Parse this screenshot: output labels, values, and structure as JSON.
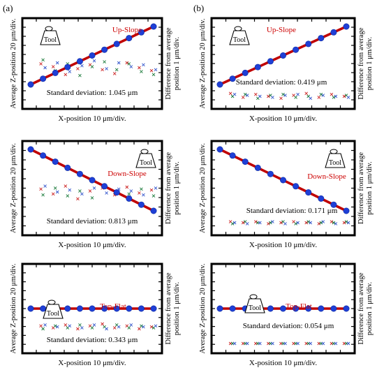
{
  "figure": {
    "col_labels": [
      "(a)",
      "(b)"
    ]
  },
  "chart_data": [
    {
      "id": "a-up",
      "type": "scatter",
      "title": "Up-Slope",
      "tool_label": "Tool",
      "xlabel": "X-position 10 μm/div.",
      "ylabel": "Average Z-position 20 μm/div.",
      "y2label": [
        "Difference from average",
        "position 1 μm/div."
      ],
      "annotation": "Standard deviation: 1.045 μm",
      "series": [
        {
          "role": "average",
          "x": [
            0,
            1,
            2,
            3,
            4,
            5,
            6,
            7,
            8,
            9,
            10
          ],
          "y": [
            0,
            1,
            2,
            3,
            4,
            5,
            6,
            7,
            8,
            9,
            10
          ]
        },
        {
          "role": "difference",
          "color": "#cc2222",
          "x": [
            1,
            2,
            3,
            4,
            5,
            6,
            7,
            8,
            9,
            10
          ],
          "y": [
            0.9,
            0.6,
            -0.2,
            0.4,
            0.8,
            0.3,
            -0.1,
            1.0,
            0.5,
            0.2
          ]
        },
        {
          "role": "difference",
          "color": "#1a7a3a",
          "x": [
            1,
            2,
            3,
            4,
            5,
            6,
            7,
            8,
            9,
            10
          ],
          "y": [
            1.3,
            0.2,
            0.9,
            -0.3,
            0.6,
            1.1,
            0.3,
            0.9,
            0.1,
            -0.2
          ]
        },
        {
          "role": "difference",
          "color": "#3355cc",
          "x": [
            1,
            2,
            3,
            4,
            5,
            6,
            7,
            8,
            9,
            10
          ],
          "y": [
            0.5,
            1.0,
            0.1,
            0.7,
            1.2,
            0.4,
            1.0,
            0.6,
            0.8,
            0.3
          ]
        }
      ]
    },
    {
      "id": "b-up",
      "type": "scatter",
      "title": "Up-Slope",
      "tool_label": "Tool",
      "xlabel": "X-position 10 μm/div.",
      "ylabel": "Average Z-position 20 μm/div.",
      "y2label": [
        "Difference from average",
        "position 1 μm/div."
      ],
      "annotation": "Standard deviation: 0.419 μm",
      "series": [
        {
          "role": "average",
          "x": [
            0,
            1,
            2,
            3,
            4,
            5,
            6,
            7,
            8,
            9,
            10
          ],
          "y": [
            0,
            1,
            2,
            3,
            4,
            5,
            6,
            7,
            8,
            9,
            10
          ]
        },
        {
          "role": "difference",
          "color": "#cc2222",
          "x": [
            1,
            2,
            3,
            4,
            5,
            6,
            7,
            8,
            9,
            10
          ],
          "y": [
            0.3,
            -0.1,
            0.2,
            0.0,
            -0.2,
            0.1,
            0.3,
            -0.1,
            0.2,
            0.0
          ]
        },
        {
          "role": "difference",
          "color": "#1a7a3a",
          "x": [
            1,
            2,
            3,
            4,
            5,
            6,
            7,
            8,
            9,
            10
          ],
          "y": [
            0.0,
            0.2,
            -0.2,
            0.1,
            0.2,
            -0.1,
            0.0,
            0.2,
            -0.1,
            0.1
          ]
        },
        {
          "role": "difference",
          "color": "#3355cc",
          "x": [
            1,
            2,
            3,
            4,
            5,
            6,
            7,
            8,
            9,
            10
          ],
          "y": [
            0.2,
            0.1,
            0.0,
            -0.1,
            0.1,
            0.2,
            -0.2,
            0.1,
            0.0,
            -0.1
          ]
        }
      ]
    },
    {
      "id": "a-down",
      "type": "scatter",
      "title": "Down-Slope",
      "tool_label": "Tool",
      "xlabel": "X-position 10 μm/div.",
      "ylabel": "Average Z-position 20 μm/div.",
      "y2label": [
        "Difference from average",
        "position 1 μm/div."
      ],
      "annotation": "Standard deviation: 0.813 μm",
      "series": [
        {
          "role": "average",
          "x": [
            0,
            1,
            2,
            3,
            4,
            5,
            6,
            7,
            8,
            9,
            10
          ],
          "y": [
            10,
            9,
            8,
            7,
            6,
            5,
            4,
            3,
            2,
            1,
            0
          ]
        },
        {
          "role": "difference",
          "color": "#cc2222",
          "x": [
            1,
            2,
            3,
            4,
            5,
            6,
            7,
            8,
            9,
            10
          ],
          "y": [
            0.8,
            0.3,
            1.1,
            -0.2,
            0.6,
            0.9,
            0.2,
            1.0,
            0.4,
            0.7
          ]
        },
        {
          "role": "difference",
          "color": "#1a7a3a",
          "x": [
            1,
            2,
            3,
            4,
            5,
            6,
            7,
            8,
            9,
            10
          ],
          "y": [
            0.2,
            0.9,
            0.1,
            0.6,
            -0.1,
            1.0,
            0.5,
            0.3,
            0.8,
            0.1
          ]
        },
        {
          "role": "difference",
          "color": "#3355cc",
          "x": [
            1,
            2,
            3,
            4,
            5,
            6,
            7,
            8,
            9,
            10
          ],
          "y": [
            1.1,
            0.5,
            0.7,
            0.3,
            0.9,
            0.4,
            0.8,
            0.6,
            0.2,
            0.9
          ]
        }
      ]
    },
    {
      "id": "b-down",
      "type": "scatter",
      "title": "Down-Slope",
      "tool_label": "Tool",
      "xlabel": "X-position 10 μm/div.",
      "ylabel": "Average Z-position 20 μm/div.",
      "y2label": [
        "Difference from average",
        "position 1 μm/div."
      ],
      "annotation": "Standard deviation: 0.171 μm",
      "series": [
        {
          "role": "average",
          "x": [
            0,
            1,
            2,
            3,
            4,
            5,
            6,
            7,
            8,
            9,
            10
          ],
          "y": [
            10,
            9,
            8,
            7,
            6,
            5,
            4,
            3,
            2,
            1,
            0
          ]
        },
        {
          "role": "difference",
          "color": "#cc2222",
          "x": [
            1,
            2,
            3,
            4,
            5,
            6,
            7,
            8,
            9,
            10
          ],
          "y": [
            0.1,
            0.0,
            0.1,
            -0.1,
            0.0,
            0.1,
            0.0,
            -0.1,
            0.1,
            0.0
          ]
        },
        {
          "role": "difference",
          "color": "#1a7a3a",
          "x": [
            1,
            2,
            3,
            4,
            5,
            6,
            7,
            8,
            9,
            10
          ],
          "y": [
            -0.1,
            0.1,
            0.0,
            0.0,
            0.1,
            -0.1,
            0.1,
            0.0,
            0.0,
            0.1
          ]
        },
        {
          "role": "difference",
          "color": "#3355cc",
          "x": [
            1,
            2,
            3,
            4,
            5,
            6,
            7,
            8,
            9,
            10
          ],
          "y": [
            0.0,
            -0.1,
            0.0,
            0.1,
            -0.1,
            0.0,
            0.0,
            0.1,
            -0.1,
            0.0
          ]
        }
      ]
    },
    {
      "id": "a-flat",
      "type": "scatter",
      "title": "Top-Flat",
      "tool_label": "Tool",
      "xlabel": "X-position 10 μm/div.",
      "ylabel": "Average Z-position 20 μm/div.",
      "y2label": [
        "Difference from average",
        "position 1 μm/div."
      ],
      "annotation": "Standard deviation: 0.343 μm",
      "series": [
        {
          "role": "average",
          "x": [
            0,
            1,
            2,
            3,
            4,
            5,
            6,
            7,
            8,
            9,
            10
          ],
          "y": [
            5,
            5,
            5,
            5,
            5,
            5,
            5,
            5,
            5,
            5,
            5
          ]
        },
        {
          "role": "difference",
          "color": "#cc2222",
          "x": [
            1,
            2,
            3,
            4,
            5,
            6,
            7,
            8,
            9,
            10
          ],
          "y": [
            0.3,
            0.1,
            0.4,
            0.0,
            0.3,
            0.5,
            0.1,
            0.3,
            0.0,
            0.2
          ]
        },
        {
          "role": "difference",
          "color": "#1a7a3a",
          "x": [
            1,
            2,
            3,
            4,
            5,
            6,
            7,
            8,
            9,
            10
          ],
          "y": [
            0.0,
            0.3,
            0.1,
            0.4,
            0.1,
            0.2,
            0.4,
            0.1,
            0.3,
            0.1
          ]
        },
        {
          "role": "difference",
          "color": "#3355cc",
          "x": [
            1,
            2,
            3,
            4,
            5,
            6,
            7,
            8,
            9,
            10
          ],
          "y": [
            0.4,
            0.2,
            0.3,
            0.1,
            0.4,
            0.0,
            0.2,
            0.4,
            0.2,
            0.3
          ]
        }
      ]
    },
    {
      "id": "b-flat",
      "type": "scatter",
      "title": "Top-Flat",
      "tool_label": "Tool",
      "xlabel": "X-position 10 μm/div.",
      "ylabel": "Average Z-position 20 μm/div.",
      "y2label": [
        "Difference from average",
        "position 1 μm/div."
      ],
      "annotation": "Standard deviation: 0.054 μm",
      "series": [
        {
          "role": "average",
          "x": [
            0,
            1,
            2,
            3,
            4,
            5,
            6,
            7,
            8,
            9,
            10
          ],
          "y": [
            5,
            5,
            5,
            5,
            5,
            5,
            5,
            5,
            5,
            5,
            5
          ]
        },
        {
          "role": "difference",
          "color": "#cc2222",
          "x": [
            1,
            2,
            3,
            4,
            5,
            6,
            7,
            8,
            9,
            10
          ],
          "y": [
            0.0,
            0.0,
            0.0,
            0.0,
            0.0,
            0.0,
            0.0,
            0.0,
            0.0,
            0.0
          ]
        },
        {
          "role": "difference",
          "color": "#1a7a3a",
          "x": [
            1,
            2,
            3,
            4,
            5,
            6,
            7,
            8,
            9,
            10
          ],
          "y": [
            0.0,
            0.0,
            0.0,
            0.0,
            0.0,
            0.0,
            0.0,
            0.0,
            0.0,
            0.0
          ]
        },
        {
          "role": "difference",
          "color": "#3355cc",
          "x": [
            1,
            2,
            3,
            4,
            5,
            6,
            7,
            8,
            9,
            10
          ],
          "y": [
            0.0,
            0.0,
            0.0,
            0.0,
            0.0,
            0.0,
            0.0,
            0.0,
            0.0,
            0.0
          ]
        }
      ]
    }
  ],
  "colors": {
    "fit_line": "#c00000",
    "marker": "#1f3fd6",
    "title_text": "#cc0000"
  }
}
